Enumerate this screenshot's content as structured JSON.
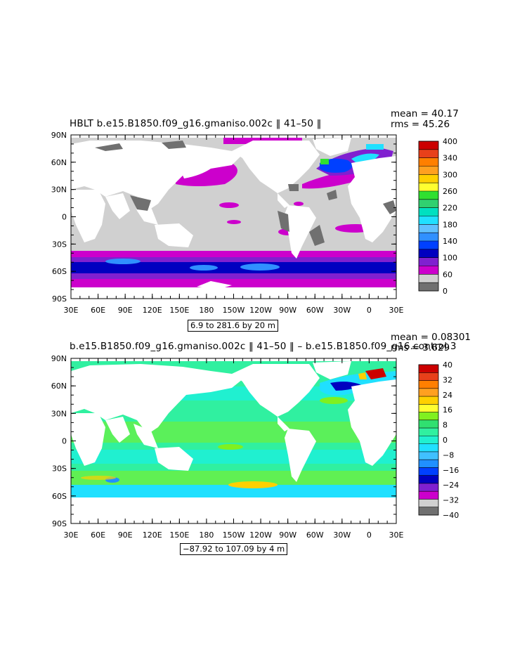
{
  "panels": [
    {
      "title": "HBLT b.e15.B1850.f09_g16.gmaniso.002c ‖ 41–50 ‖",
      "mean": "mean = 40.17",
      "rms": "rms = 45.26",
      "range": "6.9 to 281.6 by 20 m",
      "colorbar_labels": [
        "400",
        "340",
        "300",
        "260",
        "220",
        "180",
        "140",
        "100",
        "60",
        "0"
      ],
      "colorbar_colors": [
        "#cc0000",
        "#e8401a",
        "#ff7f00",
        "#ffa020",
        "#ffd000",
        "#ffff30",
        "#30e030",
        "#30d070",
        "#00e0c0",
        "#20e0ff",
        "#60c0ff",
        "#3090ff",
        "#0040ff",
        "#0000c0",
        "#8020d0",
        "#cc00cc",
        "#d0d0d0",
        "#707070"
      ]
    },
    {
      "title": "b.e15.B1850.f09_g16.gmaniso.002c ‖ 41–50 ‖ – b.e15.B1850.f09_g16.control.3",
      "mean": "mean = 0.08301",
      "rms": "rms = 3.629",
      "range": "−87.92 to 107.09 by 4 m",
      "colorbar_labels": [
        "40",
        "32",
        "24",
        "16",
        "8",
        "0",
        "−8",
        "−16",
        "−24",
        "−32",
        "−40"
      ],
      "colorbar_colors": [
        "#cc0000",
        "#e8401a",
        "#ff7f00",
        "#ffa020",
        "#ffd000",
        "#ffff30",
        "#80f020",
        "#30e070",
        "#30f0a0",
        "#20f0d0",
        "#20e0ff",
        "#40c0ff",
        "#2090ff",
        "#0040ff",
        "#0000c0",
        "#8020d0",
        "#cc00cc",
        "#d0d0d0",
        "#707070"
      ]
    }
  ],
  "axes": {
    "lat_labels": [
      "90N",
      "60N",
      "30N",
      "0",
      "30S",
      "60S",
      "90S"
    ],
    "lon_labels": [
      "30E",
      "60E",
      "90E",
      "120E",
      "150E",
      "180",
      "150W",
      "120W",
      "90W",
      "60W",
      "30W",
      "0",
      "30E"
    ]
  }
}
